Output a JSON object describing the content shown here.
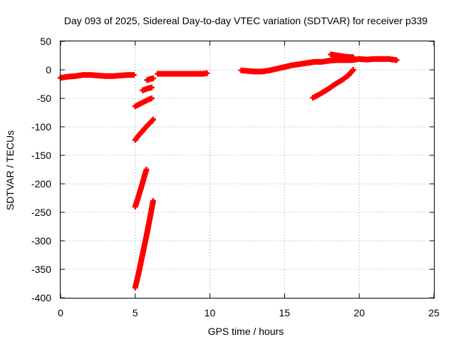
{
  "chart_data": {
    "type": "scatter",
    "title": "Day 093 of 2025, Sidereal Day-to-day VTEC variation (SDTVAR) for receiver p339",
    "xlabel": "GPS time / hours",
    "ylabel": "SDTVAR / TECUs",
    "xlim": [
      0,
      25
    ],
    "ylim": [
      -400,
      50
    ],
    "x_ticks": [
      0,
      5,
      10,
      15,
      20,
      25
    ],
    "y_ticks": [
      50,
      0,
      -50,
      -100,
      -150,
      -200,
      -250,
      -300,
      -350,
      -400
    ],
    "grid": true,
    "marker": "plus",
    "color": "#ff0000",
    "segments": [
      {
        "x": [
          0.0,
          0.5,
          1.0,
          1.5,
          2.0,
          2.5,
          3.0,
          3.5,
          4.0,
          4.5,
          4.9
        ],
        "y": [
          -14,
          -12,
          -11,
          -9,
          -9,
          -10,
          -11,
          -11,
          -10,
          -9,
          -9
        ]
      },
      {
        "x": [
          5.0,
          5.2,
          5.4,
          5.6,
          5.8,
          6.0,
          6.2
        ],
        "y": [
          -123,
          -116,
          -110,
          -104,
          -98,
          -93,
          -87
        ]
      },
      {
        "x": [
          5.0,
          5.15,
          5.3,
          5.45,
          5.6,
          5.75
        ],
        "y": [
          -240,
          -228,
          -215,
          -202,
          -188,
          -175
        ]
      },
      {
        "x": [
          5.0,
          5.2,
          5.4,
          5.6,
          5.8,
          6.0,
          6.2
        ],
        "y": [
          -382,
          -360,
          -335,
          -310,
          -285,
          -258,
          -230
        ]
      },
      {
        "x": [
          5.0,
          5.3,
          5.6,
          5.9,
          6.1
        ],
        "y": [
          -64,
          -60,
          -56,
          -52,
          -50
        ]
      },
      {
        "x": [
          5.5,
          5.8,
          6.1
        ],
        "y": [
          -36,
          -33,
          -31
        ]
      },
      {
        "x": [
          5.8,
          6.0,
          6.2
        ],
        "y": [
          -18,
          -16,
          -15
        ]
      },
      {
        "x": [
          6.5,
          7.0,
          7.5,
          8.0,
          8.5,
          9.0,
          9.5,
          9.8
        ],
        "y": [
          -7,
          -7,
          -7,
          -7,
          -7,
          -7,
          -7,
          -6
        ]
      },
      {
        "x": [
          12.1,
          12.5,
          13.0,
          13.5,
          14.0,
          14.5,
          15.0,
          15.5,
          16.0,
          16.5,
          17.0,
          17.5,
          18.0,
          18.5,
          19.0,
          19.5,
          20.0,
          20.5,
          21.0,
          21.5,
          22.0,
          22.5
        ],
        "y": [
          -1,
          -2,
          -3,
          -3,
          -1,
          2,
          5,
          8,
          10,
          12,
          14,
          14,
          16,
          17,
          17,
          17,
          19,
          18,
          19,
          19,
          19,
          17
        ]
      },
      {
        "x": [
          16.9,
          17.4,
          17.9,
          18.4,
          18.9,
          19.3,
          19.6
        ],
        "y": [
          -49,
          -42,
          -34,
          -25,
          -17,
          -9,
          0
        ]
      },
      {
        "x": [
          18.1,
          18.6,
          19.1,
          19.6
        ],
        "y": [
          27,
          25,
          23,
          22
        ]
      }
    ]
  }
}
